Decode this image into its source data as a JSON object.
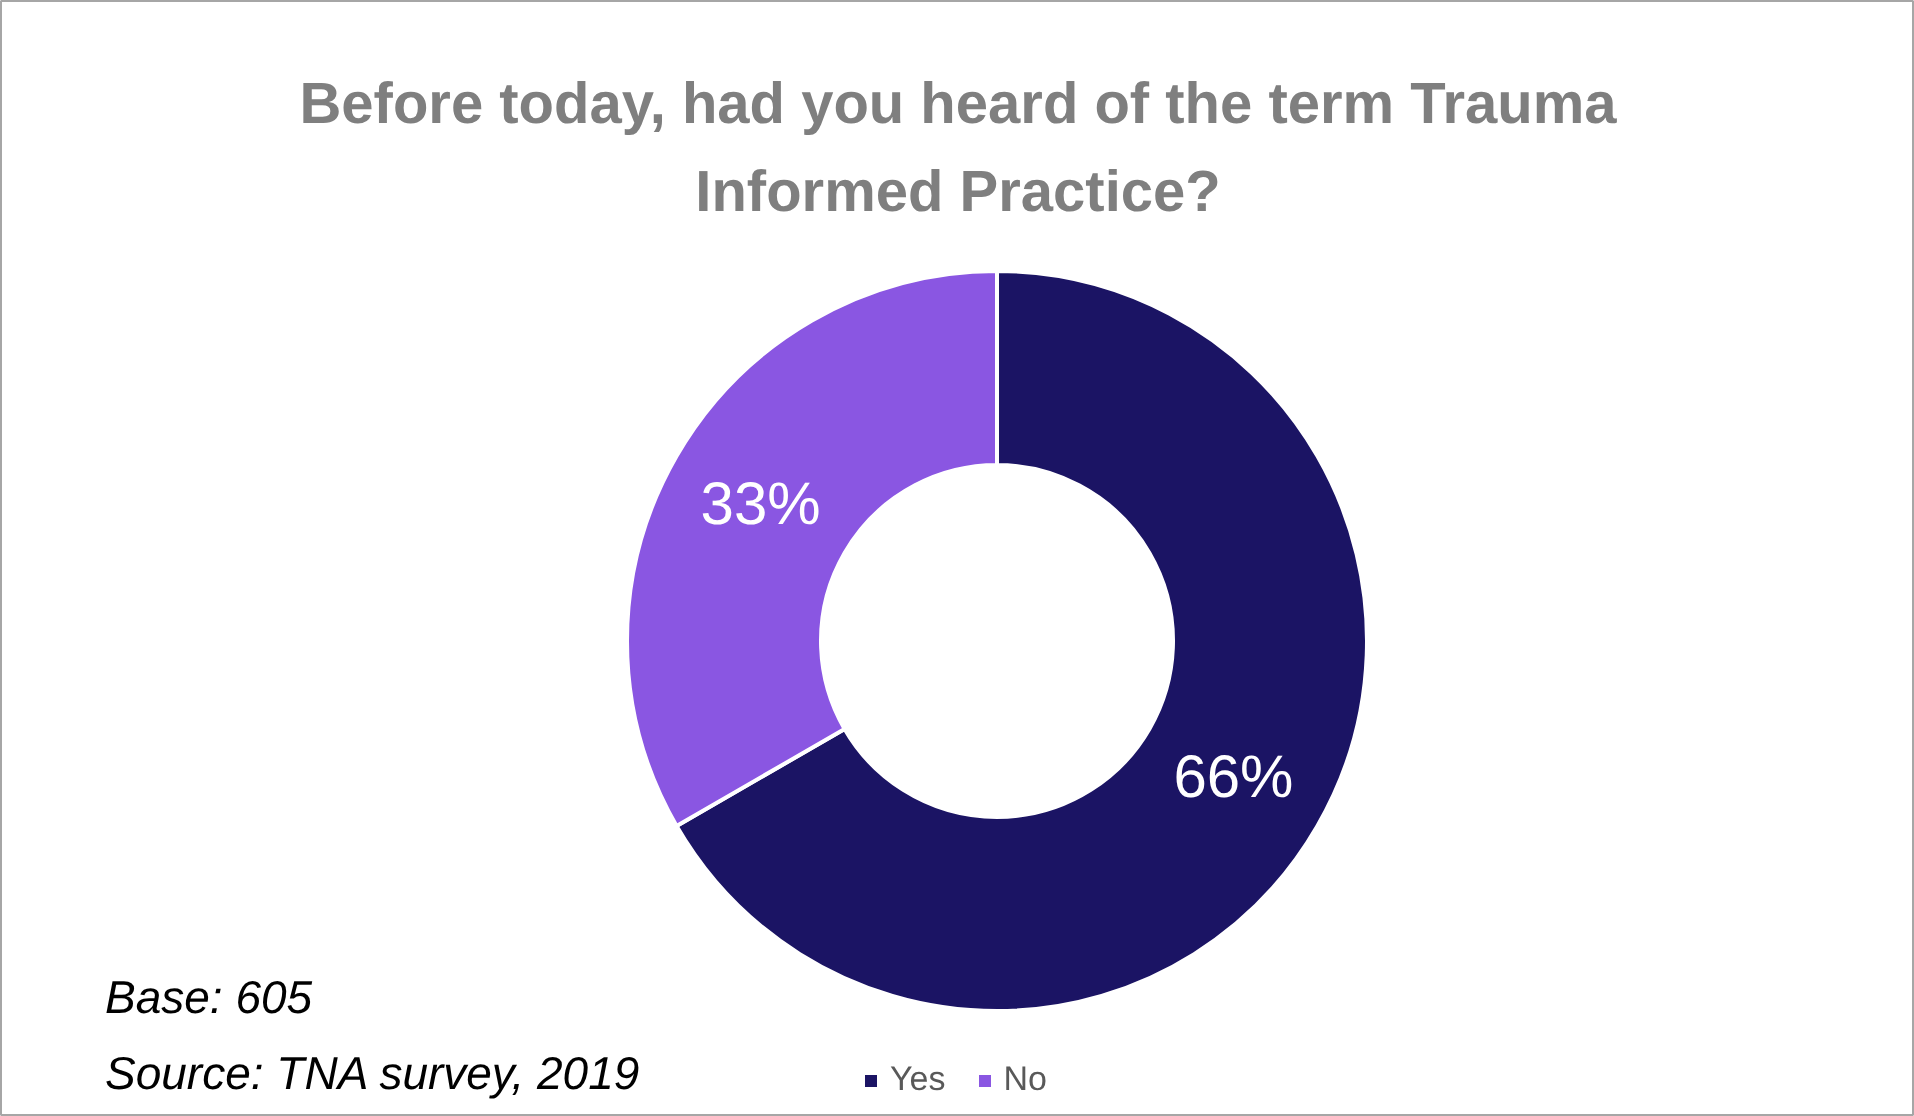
{
  "chart_data": {
    "type": "donut",
    "title": "Before today, had you heard of the term Trauma Informed Practice?",
    "categories": [
      "Yes",
      "No"
    ],
    "values": [
      66,
      33
    ],
    "colors": [
      "#1b1464",
      "#8a56e2"
    ],
    "value_labels": [
      "66%",
      "33%"
    ],
    "legend": "bottom",
    "annotations": [
      "Base: 605",
      "Source: TNA survey, 2019"
    ]
  }
}
